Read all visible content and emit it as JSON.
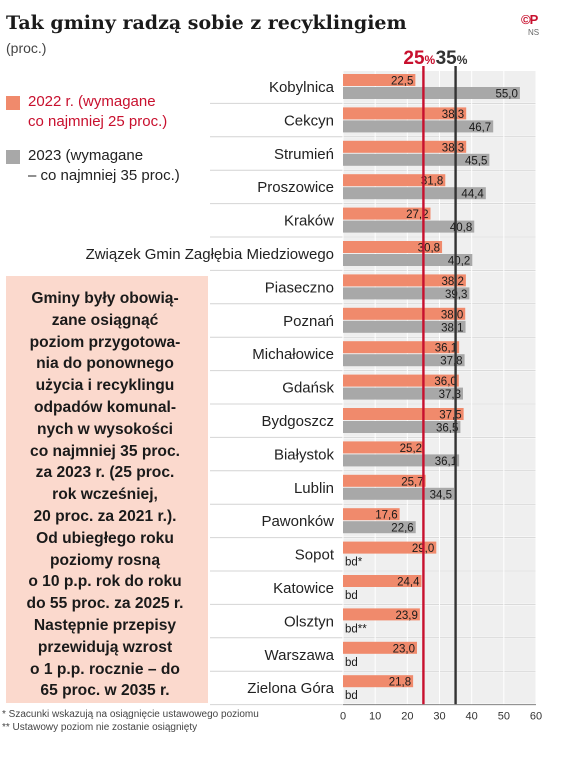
{
  "header": {
    "title": "Tak gminy radzą sobie z recyklingiem",
    "subtitle": "(proc.)",
    "logo": "©P",
    "credit": "NS"
  },
  "legend": [
    {
      "label": "2022 r. (wymagane\nco najmniej 25 proc.)",
      "color": "#f08a6c",
      "text_color": "#c8102e"
    },
    {
      "label": "2023 (wymagane\n– co najmniej 35 proc.)",
      "color": "#a8a8a8",
      "text_color": "#222222"
    }
  ],
  "callout": {
    "text": "Gminy były obowią-\nzane osiągnąć\npoziom przygotowa-\nnia do ponownego\nużycia i recyklingu\nodpadów komunal-\nnych w wysokości\nco najmniej 35 proc.\nza 2023 r. (25 proc.\nrok wcześniej,\n20 proc. za 2021 r.).\nOd ubiegłego roku\npoziomy rosną\no 10 p.p. rok do roku\ndo 55 proc. za 2025 r.\nNastępnie przepisy\nprzewidują wzrost\no 1 p.p. rocznie – do\n65 proc. w 2035 r."
  },
  "footnotes": [
    "* Szacunki wskazują na osiągnięcie ustawowego poziomu",
    "** Ustawowy poziom nie zostanie osiągnięty"
  ],
  "chart_data": {
    "type": "bar",
    "orientation": "horizontal",
    "categories": [
      "Kobylnica",
      "Cekcyn",
      "Strumień",
      "Proszowice",
      "Kraków",
      "Związek Gmin Zagłębia Miedziowego",
      "Piaseczno",
      "Poznań",
      "Michałowice",
      "Gdańsk",
      "Bydgoszcz",
      "Białystok",
      "Lublin",
      "Pawonków",
      "Sopot",
      "Katowice",
      "Olsztyn",
      "Warszawa",
      "Zielona Góra"
    ],
    "series": [
      {
        "values": [
          22.5,
          38.3,
          38.3,
          31.8,
          27.2,
          30.8,
          38.2,
          38.0,
          36.1,
          36.0,
          37.5,
          25.2,
          25.7,
          17.6,
          29.0,
          24.4,
          23.9,
          23.0,
          21.8
        ],
        "labels": [
          "22,5",
          "38,3",
          "38,3",
          "31,8",
          "27,2",
          "30,8",
          "38,2",
          "38,0",
          "36,1",
          "36,0",
          "37,5",
          "25,2",
          "25,7",
          "17,6",
          "29,0",
          "24,4",
          "23,9",
          "23,0",
          "21,8"
        ],
        "color": "#f08a6c"
      },
      {
        "values": [
          55.0,
          46.7,
          45.5,
          44.4,
          40.8,
          40.2,
          39.3,
          38.1,
          37.8,
          37.3,
          36.5,
          36.1,
          34.5,
          22.6,
          null,
          null,
          null,
          null,
          null
        ],
        "labels": [
          "55,0",
          "46,7",
          "45,5",
          "44,4",
          "40,8",
          "40,2",
          "39,3",
          "38,1",
          "37,8",
          "37,3",
          "36,5",
          "36,1",
          "34,5",
          "22,6",
          "bd*",
          "bd",
          "bd**",
          "bd",
          "bd"
        ],
        "color": "#a8a8a8"
      }
    ],
    "reference_lines": [
      {
        "value": 25,
        "label": "25",
        "unit": "%",
        "color": "#c8102e"
      },
      {
        "value": 35,
        "label": "35",
        "unit": "%",
        "color": "#333333"
      }
    ],
    "xlim": [
      0,
      60
    ],
    "xticks": [
      0,
      10,
      20,
      30,
      40,
      50,
      60
    ]
  }
}
